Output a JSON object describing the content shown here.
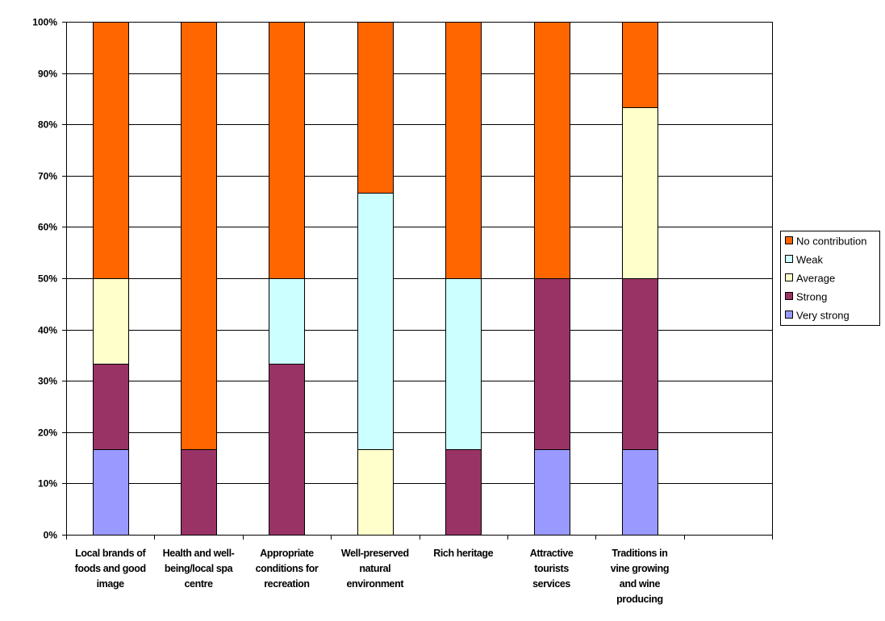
{
  "chart_data": {
    "type": "bar",
    "stacked": true,
    "percent_stacked": true,
    "categories": [
      [
        "Local brands of",
        "foods and good",
        "image"
      ],
      [
        "Health and well-",
        "being/local spa",
        "centre"
      ],
      [
        "Appropriate",
        "conditions for",
        "recreation"
      ],
      [
        "Well-preserved",
        "natural",
        "environment"
      ],
      [
        "Rich heritage"
      ],
      [
        "Attractive",
        "tourists",
        "services"
      ],
      [
        "Traditions in",
        "vine growing",
        "and wine",
        "producing"
      ],
      [
        ""
      ]
    ],
    "series": [
      {
        "name": "Very strong",
        "color": "#9999FF",
        "values": [
          16.67,
          0,
          0,
          0,
          0,
          16.67,
          16.67,
          0
        ]
      },
      {
        "name": "Strong",
        "color": "#993366",
        "values": [
          16.67,
          16.67,
          33.33,
          0,
          16.67,
          33.33,
          33.33,
          0
        ]
      },
      {
        "name": "Average",
        "color": "#FFFFCC",
        "values": [
          16.67,
          0,
          0,
          16.67,
          0,
          0,
          33.33,
          0
        ]
      },
      {
        "name": "Weak",
        "color": "#CCFFFF",
        "values": [
          0,
          0,
          16.67,
          50,
          33.33,
          0,
          0,
          0
        ]
      },
      {
        "name": "No contribution",
        "color": "#FF6600",
        "values": [
          50,
          83.33,
          50,
          33.33,
          50,
          50,
          16.67,
          0
        ]
      }
    ],
    "yticks": [
      "0%",
      "10%",
      "20%",
      "30%",
      "40%",
      "50%",
      "60%",
      "70%",
      "80%",
      "90%",
      "100%"
    ],
    "ylim": [
      0,
      100
    ],
    "grid": true,
    "legend_position": "right",
    "legend_order": [
      "No contribution",
      "Weak",
      "Average",
      "Strong",
      "Very strong"
    ],
    "title": "",
    "xlabel": "",
    "ylabel": ""
  }
}
